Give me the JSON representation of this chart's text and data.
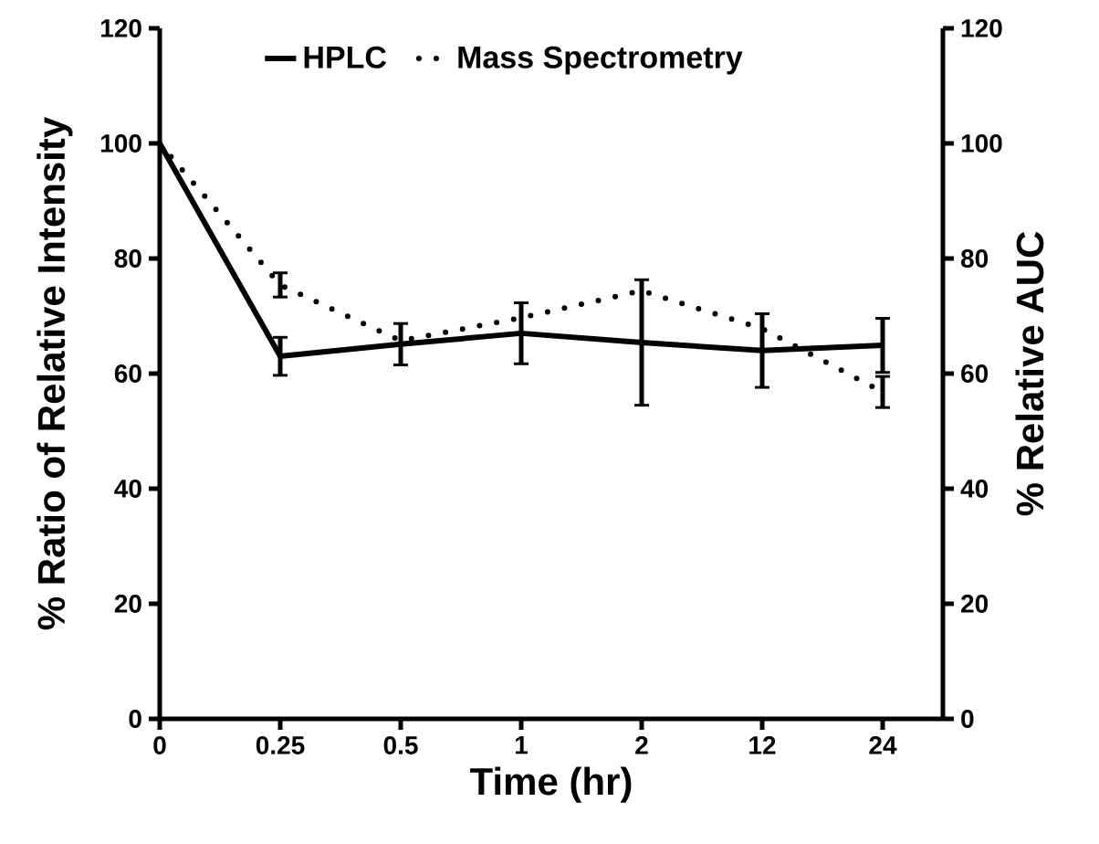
{
  "chart_data": {
    "type": "line",
    "xlabel": "Time (hr)",
    "ylabel": "% Ratio of Relative Intensity",
    "y2label": "% Relative AUC",
    "categories": [
      "0",
      "0.25",
      "0.5",
      "1",
      "2",
      "12",
      "24"
    ],
    "series": [
      {
        "name": "HPLC",
        "color": "#000000",
        "line_style": "solid",
        "values": [
          100,
          63.0,
          65.1,
          67.0,
          65.4,
          64.0,
          64.9
        ],
        "errors": [
          null,
          3.3,
          3.6,
          5.3,
          10.9,
          6.4,
          4.7
        ]
      },
      {
        "name": "Mass Spectrometry",
        "color": "#000000",
        "line_style": "dotted",
        "values": [
          100,
          75.4,
          65.7,
          69.7,
          74.4,
          67.8,
          56.8
        ],
        "errors": [
          null,
          2.1,
          null,
          null,
          null,
          null,
          2.7
        ]
      }
    ],
    "ylim": [
      0,
      120
    ],
    "yticks": [
      0,
      20,
      40,
      60,
      80,
      100,
      120
    ],
    "y2lim": [
      0,
      120
    ],
    "y2ticks": [
      0,
      20,
      40,
      60,
      80,
      100,
      120
    ],
    "legend": "top",
    "marker": "none",
    "grid": false
  }
}
